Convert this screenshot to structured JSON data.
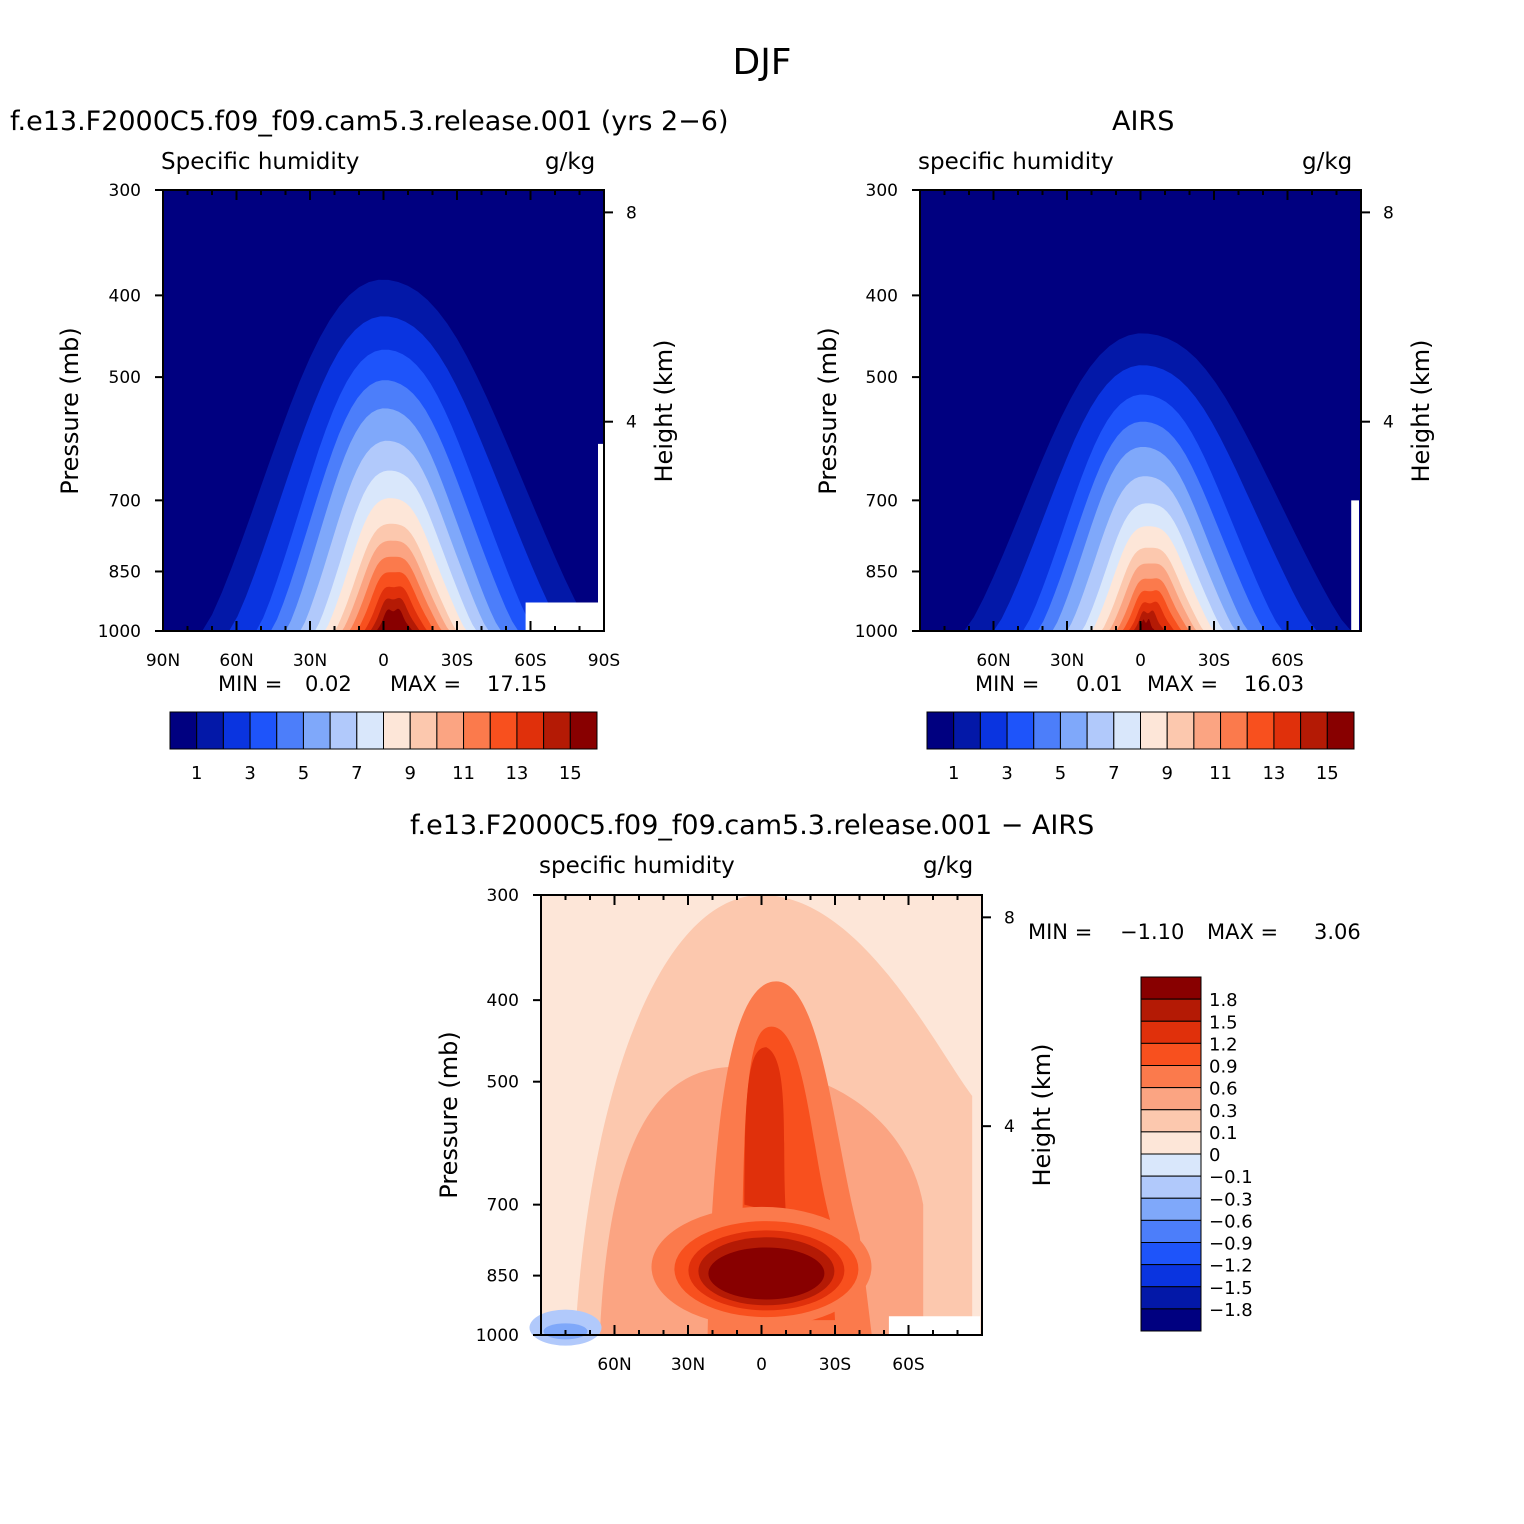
{
  "main_title": "DJF",
  "colors": {
    "abs_levels": [
      "#000080",
      "#0318a8",
      "#0a34e0",
      "#1e54fa",
      "#4c7efa",
      "#7fa8fa",
      "#b1c9fb",
      "#d9e7fb",
      "#fde6d8",
      "#fcc8ae",
      "#fba482",
      "#fb7a4c",
      "#f8501e",
      "#e0300b",
      "#b41a05",
      "#880000"
    ],
    "diff_levels": [
      "#880000",
      "#b41a05",
      "#e0300b",
      "#f8501e",
      "#fb7a4c",
      "#fba482",
      "#fcc8ae",
      "#fde6d8",
      "#d9e7fb",
      "#b1c9fb",
      "#7fa8fa",
      "#4c7efa",
      "#1e54fa",
      "#0a34e0",
      "#0318a8",
      "#000080"
    ]
  },
  "panels": {
    "model": {
      "title": "f.e13.F2000C5.f09_f09.cam5.3.release.001 (yrs 2−6)",
      "left_label": "Specific humidity",
      "right_label": "g/kg",
      "y_label": "Pressure (mb)",
      "y2_label": "Height (km)",
      "stats": {
        "min_label": "MIN =",
        "min_value": "0.02",
        "max_label": "MAX =",
        "max_value": "17.15"
      }
    },
    "obs": {
      "title": "AIRS",
      "left_label": "specific humidity",
      "right_label": "g/kg",
      "y_label": "Pressure (mb)",
      "y2_label": "Height (km)",
      "stats": {
        "min_label": "MIN =",
        "min_value": "0.01",
        "max_label": "MAX =",
        "max_value": "16.03"
      }
    },
    "diff": {
      "title": "f.e13.F2000C5.f09_f09.cam5.3.release.001 − AIRS",
      "left_label": "specific humidity",
      "right_label": "g/kg",
      "y_label": "Pressure (mb)",
      "y2_label": "Height (km)",
      "stats": {
        "min_label": "MIN =",
        "min_value": "−1.10",
        "max_label": "MAX =",
        "max_value": "3.06"
      }
    }
  },
  "chart_data": [
    {
      "type": "heatmap",
      "title": "f.e13.F2000C5.f09_f09.cam5.3.release.001 (yrs 2−6)",
      "ylabel": "Pressure (mb)",
      "y2label": "Height (km)",
      "x_tick_labels": [
        "90N",
        "60N",
        "30N",
        "0",
        "30S",
        "60S",
        "90S"
      ],
      "x_tick_values": [
        90,
        60,
        30,
        0,
        -30,
        -60,
        -90
      ],
      "y_tick_labels": [
        "300",
        "400",
        "500",
        "700",
        "850",
        "1000"
      ],
      "y_tick_values": [
        300,
        400,
        500,
        700,
        850,
        1000
      ],
      "y2_tick_labels": [
        "8",
        "4"
      ],
      "y2_tick_values": [
        8,
        4
      ],
      "xlim": [
        90,
        -90
      ],
      "ylim": [
        1000,
        300
      ],
      "colorbar_labels": [
        "1",
        "3",
        "5",
        "7",
        "9",
        "11",
        "13",
        "15"
      ],
      "colorbar_values": [
        1,
        3,
        5,
        7,
        9,
        11,
        13,
        15
      ],
      "peak_contours": [
        {
          "level": 1,
          "lat_min": 74,
          "lat_max": -86,
          "p_top": 380
        },
        {
          "level": 3,
          "lat_min": 52,
          "lat_max": -62,
          "p_top": 460
        },
        {
          "level": 5,
          "lat_min": 40,
          "lat_max": -48,
          "p_top": 540
        },
        {
          "level": 7,
          "lat_min": 28,
          "lat_max": -38,
          "p_top": 640
        },
        {
          "level": 9,
          "lat_min": 20,
          "lat_max": -30,
          "p_top": 740
        },
        {
          "level": 11,
          "lat_min": 14,
          "lat_max": -24,
          "p_top": 810
        },
        {
          "level": 13,
          "lat_min": 8,
          "lat_max": -18,
          "p_top": 880
        },
        {
          "level": 15,
          "lat_min": 3,
          "lat_max": -12,
          "p_top": 940
        }
      ],
      "min": 0.02,
      "max": 17.15
    },
    {
      "type": "heatmap",
      "title": "AIRS",
      "ylabel": "Pressure (mb)",
      "y2label": "Height (km)",
      "x_tick_labels": [
        "60N",
        "30N",
        "0",
        "30S",
        "60S"
      ],
      "x_tick_values": [
        60,
        30,
        0,
        -30,
        -60
      ],
      "y_tick_labels": [
        "300",
        "400",
        "500",
        "700",
        "850",
        "1000"
      ],
      "y_tick_values": [
        300,
        400,
        500,
        700,
        850,
        1000
      ],
      "y2_tick_labels": [
        "8",
        "4"
      ],
      "y2_tick_values": [
        8,
        4
      ],
      "xlim": [
        90,
        -90
      ],
      "ylim": [
        1000,
        300
      ],
      "colorbar_labels": [
        "1",
        "3",
        "5",
        "7",
        "9",
        "11",
        "13",
        "15"
      ],
      "colorbar_values": [
        1,
        3,
        5,
        7,
        9,
        11,
        13,
        15
      ],
      "peak_contours": [
        {
          "level": 1,
          "lat_min": 72,
          "lat_max": -86,
          "p_top": 440
        },
        {
          "level": 3,
          "lat_min": 48,
          "lat_max": -58,
          "p_top": 520
        },
        {
          "level": 5,
          "lat_min": 36,
          "lat_max": -44,
          "p_top": 600
        },
        {
          "level": 7,
          "lat_min": 24,
          "lat_max": -34,
          "p_top": 700
        },
        {
          "level": 9,
          "lat_min": 16,
          "lat_max": -26,
          "p_top": 790
        },
        {
          "level": 11,
          "lat_min": 10,
          "lat_max": -20,
          "p_top": 860
        },
        {
          "level": 13,
          "lat_min": 5,
          "lat_max": -14,
          "p_top": 920
        },
        {
          "level": 15,
          "lat_min": 1,
          "lat_max": -6,
          "p_top": 970
        }
      ],
      "min": 0.01,
      "max": 16.03
    },
    {
      "type": "heatmap",
      "title": "f.e13.F2000C5.f09_f09.cam5.3.release.001 − AIRS",
      "ylabel": "Pressure (mb)",
      "y2label": "Height (km)",
      "x_tick_labels": [
        "60N",
        "30N",
        "0",
        "30S",
        "60S"
      ],
      "x_tick_values": [
        60,
        30,
        0,
        -30,
        -60
      ],
      "y_tick_labels": [
        "300",
        "400",
        "500",
        "700",
        "850",
        "1000"
      ],
      "y_tick_values": [
        300,
        400,
        500,
        700,
        850,
        1000
      ],
      "y2_tick_labels": [
        "8",
        "4"
      ],
      "y2_tick_values": [
        8,
        4
      ],
      "xlim": [
        90,
        -90
      ],
      "ylim": [
        1000,
        300
      ],
      "colorbar_labels": [
        "1.8",
        "1.5",
        "1.2",
        "0.9",
        "0.6",
        "0.3",
        "0.1",
        "0",
        "−0.1",
        "−0.3",
        "−0.6",
        "−0.9",
        "−1.2",
        "−1.5",
        "−1.8"
      ],
      "colorbar_values": [
        1.8,
        1.5,
        1.2,
        0.9,
        0.6,
        0.3,
        0.1,
        0,
        -0.1,
        -0.3,
        -0.6,
        -0.9,
        -1.2,
        -1.5,
        -1.8
      ],
      "min": -1.1,
      "max": 3.06
    }
  ]
}
